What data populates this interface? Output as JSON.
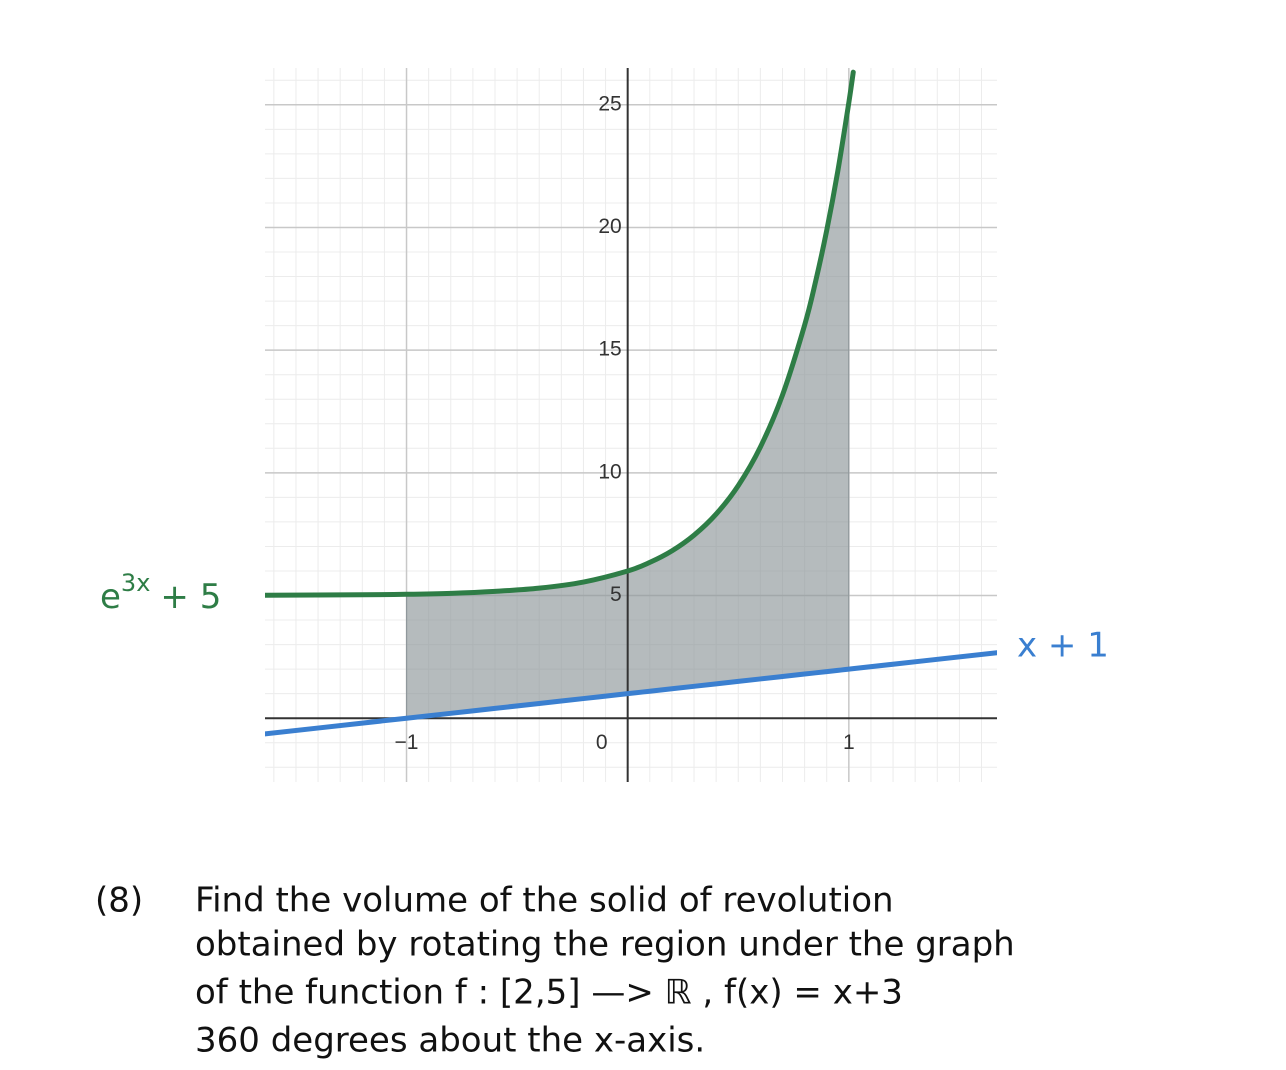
{
  "chart_data": {
    "type": "line",
    "xlim": [
      -1.64,
      1.67
    ],
    "ylim": [
      -2.6,
      26.5
    ],
    "xticks": [
      {
        "value": -1,
        "label": "−1"
      },
      0,
      1
    ],
    "yticks": [
      5,
      10,
      15,
      20,
      25
    ],
    "grid": true,
    "minor_grid": {
      "x": 0.1,
      "y": 1
    },
    "shade_x": [
      -1,
      1
    ],
    "x": [
      -1.64,
      -1.2,
      -1,
      -0.8,
      -0.6,
      -0.4,
      -0.2,
      0,
      0.1,
      0.2,
      0.3,
      0.4,
      0.5,
      0.6,
      0.7,
      0.8,
      0.85,
      0.9,
      0.95,
      1,
      1.02,
      1.67
    ],
    "series": [
      {
        "name": [
          "e",
          "3x",
          "+ 5"
        ],
        "color": "#2e7d46",
        "values": [
          5.01,
          5.03,
          5.05,
          5.09,
          5.17,
          5.3,
          5.55,
          6,
          6.35,
          6.82,
          7.46,
          8.32,
          9.48,
          11.05,
          13.17,
          16.02,
          17.81,
          19.88,
          22.29,
          25.09,
          26.33,
          null
        ]
      },
      {
        "name": "x + 1",
        "color": "#3a7fd0",
        "values": [
          -0.64,
          -0.2,
          0,
          0.2,
          0.4,
          0.6,
          0.8,
          1,
          1.1,
          1.2,
          1.3,
          1.4,
          1.5,
          1.6,
          1.7,
          1.8,
          1.85,
          1.9,
          1.95,
          2,
          2.02,
          2.67
        ]
      }
    ]
  },
  "question": {
    "number": "(8)",
    "lines": [
      "Find the volume of the solid of revolution",
      "obtained by rotating the region under the graph",
      "of the function f : [2,5] —> ℝ , f(x) = x+3",
      "360 degrees about the x-axis."
    ]
  }
}
